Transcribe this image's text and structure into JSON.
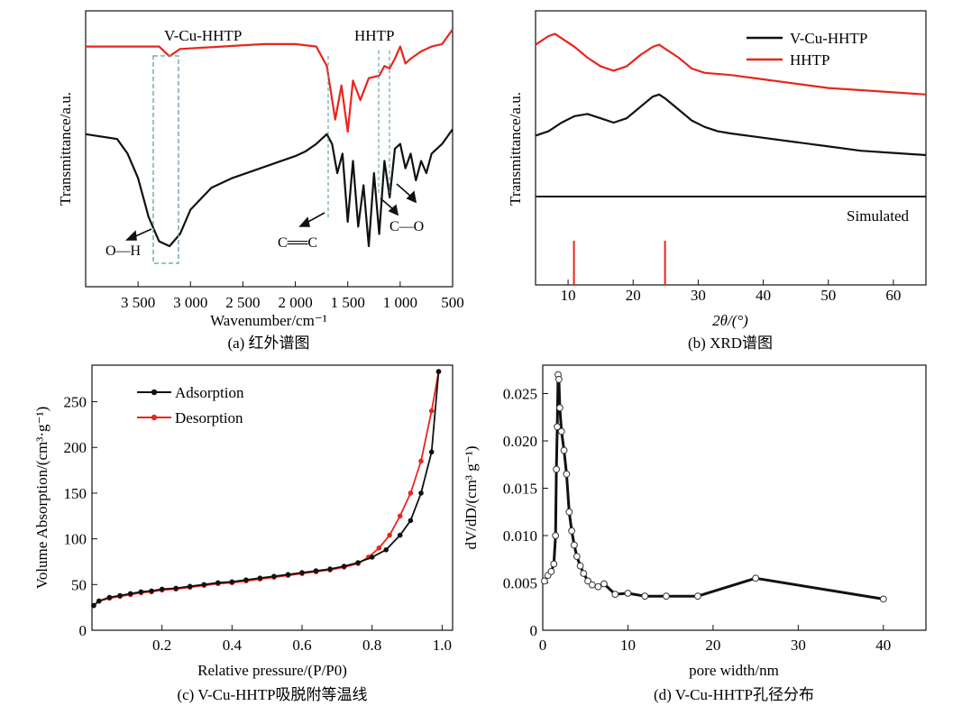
{
  "chart_data": [
    {
      "type": "line",
      "caption": "(a) 红外谱图",
      "xlabel": "Wavenumber/cm⁻¹",
      "ylabel": "Transmittance/a.u.",
      "xlim": [
        4000,
        500
      ],
      "x_reversed": true,
      "xticks": [
        {
          "v": 3500,
          "label": "3 500"
        },
        {
          "v": 3000,
          "label": "3 000"
        },
        {
          "v": 2500,
          "label": "2 500"
        },
        {
          "v": 2000,
          "label": "2 000"
        },
        {
          "v": 1500,
          "label": "1 500"
        },
        {
          "v": 1000,
          "label": "1 000"
        },
        {
          "v": 500,
          "label": "500"
        }
      ],
      "series": [
        {
          "name": "V-Cu-HHTP",
          "color": "#e8261c",
          "x": [
            4000,
            3600,
            3300,
            3200,
            3100,
            2700,
            2300,
            2000,
            1800,
            1700,
            1620,
            1560,
            1500,
            1450,
            1380,
            1300,
            1200,
            1150,
            1100,
            1050,
            1000,
            950,
            900,
            800,
            700,
            600,
            500
          ],
          "y": [
            0.92,
            0.92,
            0.92,
            0.88,
            0.91,
            0.92,
            0.93,
            0.93,
            0.92,
            0.84,
            0.62,
            0.76,
            0.57,
            0.78,
            0.7,
            0.79,
            0.8,
            0.84,
            0.83,
            0.87,
            0.92,
            0.85,
            0.87,
            0.9,
            0.92,
            0.93,
            0.99
          ]
        },
        {
          "name": "HHTP",
          "color": "#111111",
          "x": [
            4000,
            3700,
            3600,
            3500,
            3400,
            3300,
            3200,
            3100,
            3000,
            2800,
            2600,
            2400,
            2200,
            2000,
            1900,
            1800,
            1700,
            1650,
            1600,
            1550,
            1500,
            1450,
            1400,
            1350,
            1300,
            1250,
            1200,
            1150,
            1100,
            1050,
            1000,
            950,
            900,
            850,
            800,
            750,
            700,
            600,
            500
          ],
          "y": [
            0.56,
            0.54,
            0.48,
            0.38,
            0.22,
            0.12,
            0.1,
            0.15,
            0.25,
            0.34,
            0.38,
            0.41,
            0.44,
            0.47,
            0.49,
            0.52,
            0.56,
            0.52,
            0.4,
            0.48,
            0.2,
            0.45,
            0.18,
            0.35,
            0.1,
            0.4,
            0.15,
            0.45,
            0.3,
            0.5,
            0.52,
            0.42,
            0.48,
            0.37,
            0.45,
            0.4,
            0.48,
            0.52,
            0.58
          ]
        }
      ],
      "annotations": [
        "V-Cu-HHTP",
        "HHTP",
        "O—H",
        "C══C",
        "C—O"
      ]
    },
    {
      "type": "line",
      "caption": "(b) XRD谱图",
      "xlabel": "2θ/(°)",
      "ylabel": "Transmittance/a.u.",
      "xlim": [
        5,
        65
      ],
      "xticks": [
        10,
        20,
        30,
        40,
        50,
        60
      ],
      "legend": {
        "placement": "top-right"
      },
      "series": [
        {
          "name": "V-Cu-HHTP",
          "color": "#111111",
          "x": [
            5,
            7,
            9,
            11,
            13,
            15,
            17,
            19,
            21,
            23,
            24,
            25,
            27,
            29,
            31,
            33,
            35,
            40,
            45,
            50,
            55,
            60,
            65
          ],
          "y": [
            0.54,
            0.56,
            0.6,
            0.63,
            0.64,
            0.62,
            0.6,
            0.62,
            0.67,
            0.72,
            0.73,
            0.71,
            0.66,
            0.61,
            0.58,
            0.56,
            0.55,
            0.53,
            0.51,
            0.49,
            0.47,
            0.46,
            0.45
          ]
        },
        {
          "name": "HHTP",
          "color": "#e8261c",
          "x": [
            5,
            7,
            8,
            9,
            11,
            13,
            15,
            17,
            19,
            21,
            23,
            24,
            25,
            27,
            29,
            31,
            35,
            40,
            45,
            50,
            55,
            60,
            65
          ],
          "y": [
            0.96,
            1.0,
            1.01,
            0.99,
            0.95,
            0.9,
            0.86,
            0.84,
            0.86,
            0.91,
            0.95,
            0.96,
            0.94,
            0.9,
            0.85,
            0.83,
            0.82,
            0.8,
            0.78,
            0.76,
            0.75,
            0.74,
            0.73
          ]
        }
      ],
      "simulated": {
        "label": "Simulated",
        "peaks": [
          10.9,
          24.9
        ],
        "color": "#e8261c"
      }
    },
    {
      "type": "line",
      "caption": "(c) V-Cu-HHTP吸脱附等温线",
      "xlabel": "Relative pressure/(P/P0)",
      "ylabel": "Volume Absorption/(cm³·g⁻¹)",
      "xlim": [
        0,
        1.03
      ],
      "ylim": [
        0,
        290
      ],
      "xticks": [
        0.2,
        0.4,
        0.6,
        0.8,
        1.0
      ],
      "yticks": [
        0,
        50,
        100,
        150,
        200,
        250
      ],
      "legend": {
        "placement": "top-left"
      },
      "series": [
        {
          "name": "Adsorption",
          "color": "#111111",
          "x": [
            0.005,
            0.02,
            0.05,
            0.08,
            0.11,
            0.14,
            0.17,
            0.2,
            0.24,
            0.28,
            0.32,
            0.36,
            0.4,
            0.44,
            0.48,
            0.52,
            0.56,
            0.6,
            0.64,
            0.68,
            0.72,
            0.76,
            0.8,
            0.84,
            0.88,
            0.91,
            0.94,
            0.97,
            0.99
          ],
          "y": [
            27,
            32,
            36,
            38,
            40,
            42,
            43,
            45,
            46,
            48,
            50,
            52,
            53,
            55,
            57,
            59,
            61,
            63,
            65,
            67,
            70,
            74,
            80,
            88,
            104,
            120,
            150,
            195,
            283
          ]
        },
        {
          "name": "Desorption",
          "color": "#e8261c",
          "x": [
            0.005,
            0.02,
            0.05,
            0.08,
            0.11,
            0.14,
            0.17,
            0.2,
            0.24,
            0.28,
            0.32,
            0.36,
            0.4,
            0.44,
            0.48,
            0.52,
            0.56,
            0.6,
            0.64,
            0.68,
            0.72,
            0.76,
            0.79,
            0.82,
            0.85,
            0.88,
            0.91,
            0.94,
            0.97,
            0.99
          ],
          "y": [
            27,
            32,
            35,
            37,
            39,
            41,
            42,
            44,
            45,
            47,
            49,
            51,
            52,
            54,
            56,
            58,
            60,
            62,
            64,
            66,
            69,
            73,
            80,
            90,
            104,
            125,
            150,
            185,
            240,
            283
          ]
        }
      ]
    },
    {
      "type": "line",
      "caption": "(d) V-Cu-HHTP孔径分布",
      "xlabel": "pore width/nm",
      "ylabel": "dV/dD/(cm³ g⁻¹)",
      "xlim": [
        0,
        45
      ],
      "ylim": [
        0,
        0.028
      ],
      "xticks": [
        0,
        10,
        20,
        30,
        40
      ],
      "yticks": [
        0,
        0.005,
        0.01,
        0.015,
        0.02,
        0.025
      ],
      "ytick_labels": [
        "0",
        "0.005",
        "0.010",
        "0.015",
        "0.020",
        "0.025"
      ],
      "series": [
        {
          "name": "",
          "color": "#111111",
          "x": [
            0.2,
            0.6,
            1.0,
            1.3,
            1.5,
            1.6,
            1.7,
            1.8,
            1.9,
            2.0,
            2.2,
            2.5,
            2.8,
            3.1,
            3.4,
            3.7,
            4.0,
            4.4,
            4.8,
            5.3,
            5.8,
            6.5,
            7.2,
            8.5,
            10,
            12,
            14.5,
            18.2,
            25,
            40
          ],
          "y": [
            0.0052,
            0.0058,
            0.0062,
            0.007,
            0.01,
            0.017,
            0.0215,
            0.027,
            0.0265,
            0.0235,
            0.021,
            0.019,
            0.0165,
            0.0125,
            0.0105,
            0.009,
            0.0078,
            0.0068,
            0.006,
            0.0052,
            0.0048,
            0.0046,
            0.0049,
            0.0038,
            0.0039,
            0.0036,
            0.0036,
            0.0036,
            0.0055,
            0.0033
          ]
        }
      ]
    }
  ]
}
